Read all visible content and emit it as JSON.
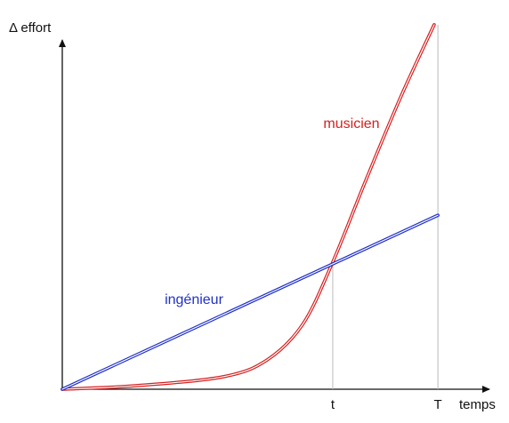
{
  "chart_data": {
    "type": "line",
    "y_label": "Δ effort",
    "x_label": "temps",
    "xlim": [
      0,
      1.13
    ],
    "ylim": [
      0,
      1.0
    ],
    "xticks": [
      {
        "value": 0.72,
        "label": "t"
      },
      {
        "value": 1.0,
        "label": "T"
      }
    ],
    "series": [
      {
        "name": "musicien",
        "color": "#d42020",
        "x": [
          0,
          0.19,
          0.427,
          0.545,
          0.64,
          0.72,
          0.806,
          0.9,
          0.99
        ],
        "values": [
          0,
          0.009,
          0.033,
          0.078,
          0.173,
          0.339,
          0.552,
          0.777,
          0.972
        ]
      },
      {
        "name": "ingénieur",
        "color": "#2030c8",
        "x": [
          0,
          1.0
        ],
        "values": [
          0,
          0.464
        ]
      }
    ]
  }
}
